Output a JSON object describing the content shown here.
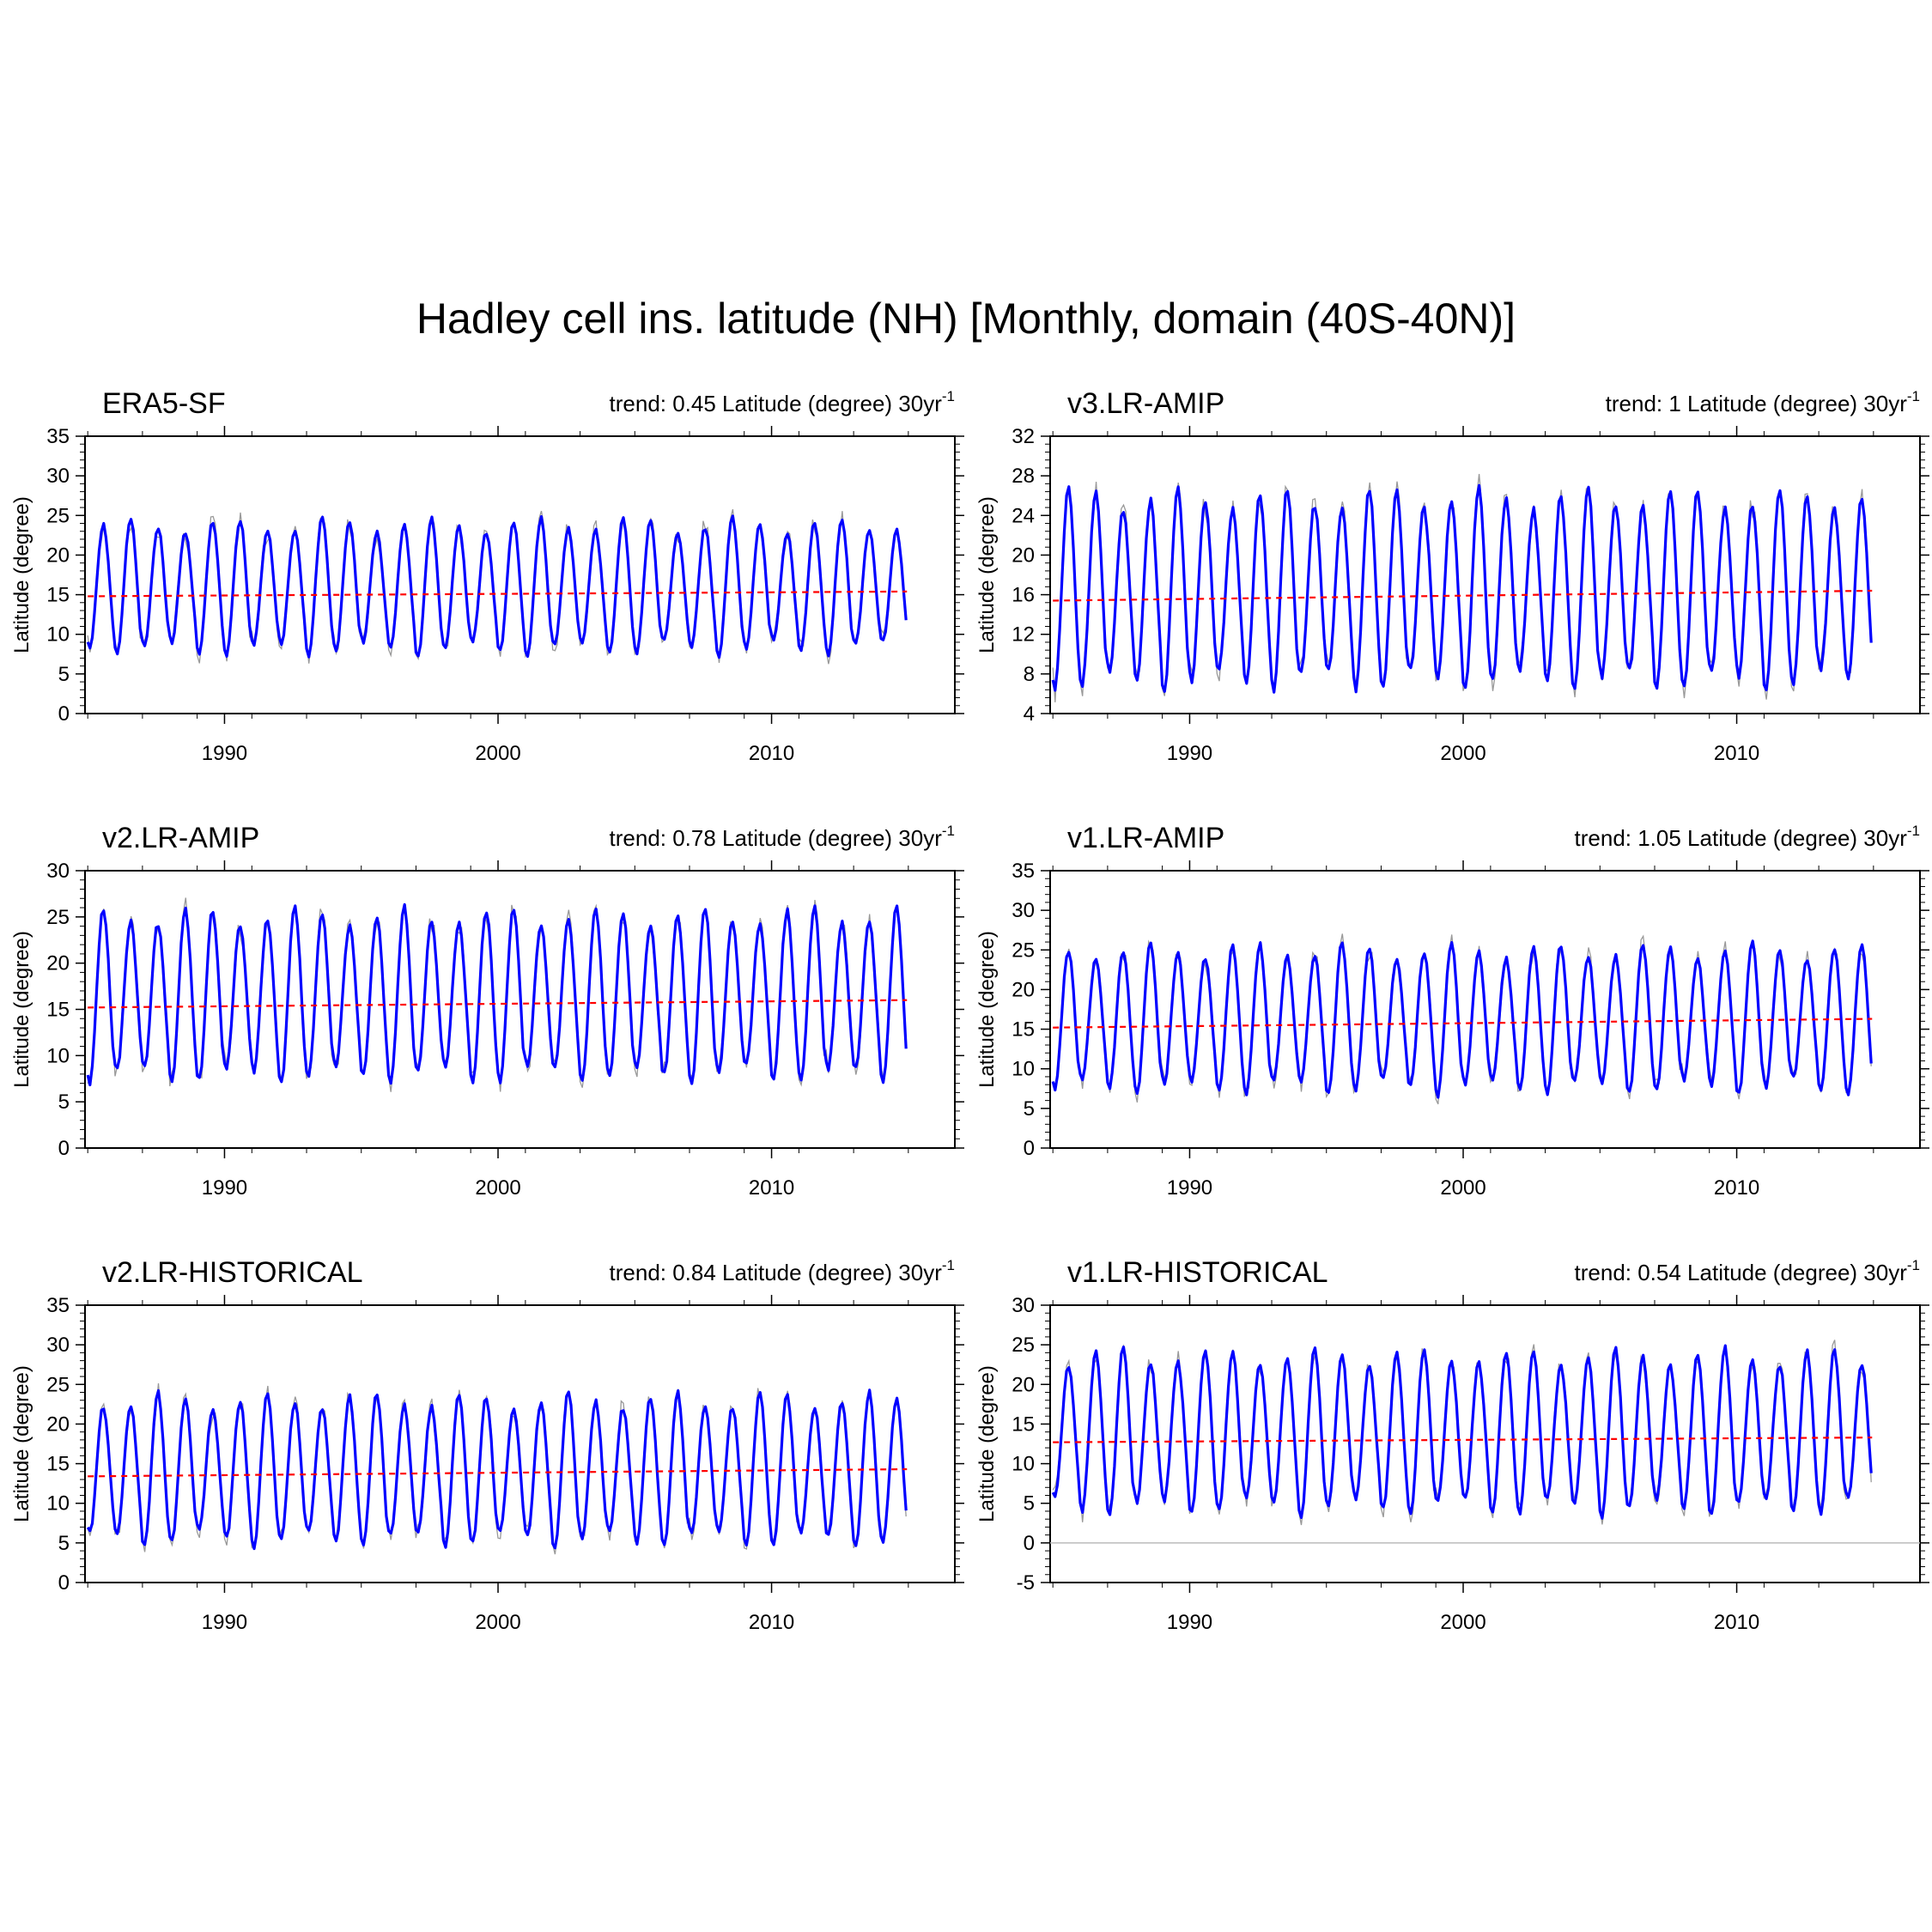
{
  "figure_title": "Hadley cell ins. latitude (NH) [Monthly, domain (40S-40N)]",
  "chart_data": [
    {
      "type": "line",
      "name": "ERA5-SF",
      "title": "ERA5-SF",
      "trend_label": "trend: 0.45 Latitude (degree) 30yr",
      "trend_exp": "-1",
      "ylabel": "Latitude (degree)",
      "xlim": [
        1984.9,
        2016.7
      ],
      "ylim": [
        0,
        35
      ],
      "yticks": [
        0,
        5,
        10,
        15,
        20,
        25,
        30,
        35
      ],
      "xticks": [
        1990,
        2000,
        2010
      ],
      "series_smooth": {
        "name": "smoothed",
        "color": "#0000ff",
        "mean": 16.0,
        "amp": 7.8
      },
      "series_raw": {
        "name": "monthly",
        "color": "#999999"
      },
      "trend_line": {
        "start": 14.8,
        "end": 15.4,
        "color": "#ff0000"
      },
      "zero_line": false
    },
    {
      "type": "line",
      "name": "v3.LR-AMIP",
      "title": "v3.LR-AMIP",
      "trend_label": "trend: 1 Latitude (degree) 30yr",
      "trend_exp": "-1",
      "ylabel": "Latitude (degree)",
      "xlim": [
        1984.9,
        2016.7
      ],
      "ylim": [
        4,
        32
      ],
      "yticks": [
        4,
        8,
        12,
        16,
        20,
        24,
        28,
        32
      ],
      "xticks": [
        1990,
        2000,
        2010
      ],
      "series_smooth": {
        "name": "smoothed",
        "color": "#0000ff",
        "mean": 16.5,
        "amp": 9.2
      },
      "series_raw": {
        "name": "monthly",
        "color": "#999999"
      },
      "trend_line": {
        "start": 15.4,
        "end": 16.4,
        "color": "#ff0000"
      },
      "zero_line": false
    },
    {
      "type": "line",
      "name": "v2.LR-AMIP",
      "title": "v2.LR-AMIP",
      "trend_label": "trend: 0.78 Latitude (degree) 30yr",
      "trend_exp": "-1",
      "ylabel": "Latitude (degree)",
      "xlim": [
        1984.9,
        2016.7
      ],
      "ylim": [
        0,
        30
      ],
      "yticks": [
        0,
        5,
        10,
        15,
        20,
        25,
        30
      ],
      "xticks": [
        1990,
        2000,
        2010
      ],
      "series_smooth": {
        "name": "smoothed",
        "color": "#0000ff",
        "mean": 16.5,
        "amp": 8.6
      },
      "series_raw": {
        "name": "monthly",
        "color": "#999999"
      },
      "trend_line": {
        "start": 15.2,
        "end": 16.0,
        "color": "#ff0000"
      },
      "zero_line": false
    },
    {
      "type": "line",
      "name": "v1.LR-AMIP",
      "title": "v1.LR-AMIP",
      "trend_label": "trend: 1.05 Latitude (degree) 30yr",
      "trend_exp": "-1",
      "ylabel": "Latitude (degree)",
      "xlim": [
        1984.9,
        2016.7
      ],
      "ylim": [
        0,
        35
      ],
      "yticks": [
        0,
        5,
        10,
        15,
        20,
        25,
        30,
        35
      ],
      "xticks": [
        1990,
        2000,
        2010
      ],
      "series_smooth": {
        "name": "smoothed",
        "color": "#0000ff",
        "mean": 16.3,
        "amp": 8.6
      },
      "series_raw": {
        "name": "monthly",
        "color": "#999999"
      },
      "trend_line": {
        "start": 15.2,
        "end": 16.3,
        "color": "#ff0000"
      },
      "zero_line": false
    },
    {
      "type": "line",
      "name": "v2.LR-HISTORICAL",
      "title": "v2.LR-HISTORICAL",
      "trend_label": "trend: 0.84 Latitude (degree) 30yr",
      "trend_exp": "-1",
      "ylabel": "Latitude (degree)",
      "xlim": [
        1984.9,
        2016.7
      ],
      "ylim": [
        0,
        35
      ],
      "yticks": [
        0,
        5,
        10,
        15,
        20,
        25,
        30,
        35
      ],
      "xticks": [
        1990,
        2000,
        2010
      ],
      "series_smooth": {
        "name": "smoothed",
        "color": "#0000ff",
        "mean": 14.2,
        "amp": 8.8
      },
      "series_raw": {
        "name": "monthly",
        "color": "#999999"
      },
      "trend_line": {
        "start": 13.4,
        "end": 14.3,
        "color": "#ff0000"
      },
      "zero_line": false
    },
    {
      "type": "line",
      "name": "v1.LR-HISTORICAL",
      "title": "v1.LR-HISTORICAL",
      "trend_label": "trend: 0.54 Latitude (degree) 30yr",
      "trend_exp": "-1",
      "ylabel": "Latitude (degree)",
      "xlim": [
        1984.9,
        2016.7
      ],
      "ylim": [
        -5,
        30
      ],
      "yticks": [
        -5,
        0,
        5,
        10,
        15,
        20,
        25,
        30
      ],
      "xticks": [
        1990,
        2000,
        2010
      ],
      "series_smooth": {
        "name": "smoothed",
        "color": "#0000ff",
        "mean": 14.0,
        "amp": 9.5
      },
      "series_raw": {
        "name": "monthly",
        "color": "#999999"
      },
      "trend_line": {
        "start": 12.7,
        "end": 13.3,
        "color": "#ff0000"
      },
      "zero_line": true
    }
  ]
}
